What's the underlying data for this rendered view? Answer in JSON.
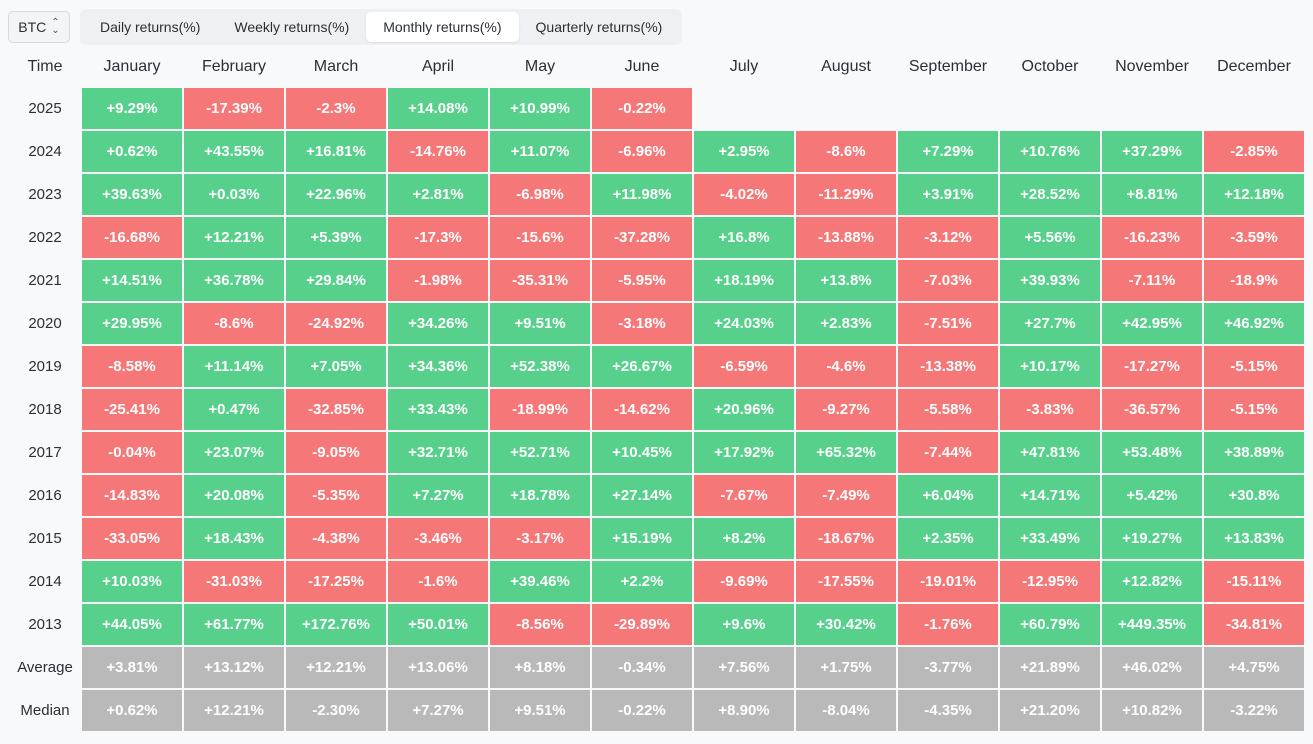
{
  "asset_selector": {
    "value": "BTC"
  },
  "tabs": [
    {
      "label": "Daily returns(%)",
      "active": false
    },
    {
      "label": "Weekly returns(%)",
      "active": false
    },
    {
      "label": "Monthly returns(%)",
      "active": true
    },
    {
      "label": "Quarterly returns(%)",
      "active": false
    }
  ],
  "table": {
    "corner": "Time",
    "months": [
      "January",
      "February",
      "March",
      "April",
      "May",
      "June",
      "July",
      "August",
      "September",
      "October",
      "November",
      "December"
    ],
    "rows": [
      {
        "label": "2025",
        "values": [
          "+9.29%",
          "-17.39%",
          "-2.3%",
          "+14.08%",
          "+10.99%",
          "-0.22%",
          "",
          "",
          "",
          "",
          "",
          ""
        ]
      },
      {
        "label": "2024",
        "values": [
          "+0.62%",
          "+43.55%",
          "+16.81%",
          "-14.76%",
          "+11.07%",
          "-6.96%",
          "+2.95%",
          "-8.6%",
          "+7.29%",
          "+10.76%",
          "+37.29%",
          "-2.85%"
        ]
      },
      {
        "label": "2023",
        "values": [
          "+39.63%",
          "+0.03%",
          "+22.96%",
          "+2.81%",
          "-6.98%",
          "+11.98%",
          "-4.02%",
          "-11.29%",
          "+3.91%",
          "+28.52%",
          "+8.81%",
          "+12.18%"
        ]
      },
      {
        "label": "2022",
        "values": [
          "-16.68%",
          "+12.21%",
          "+5.39%",
          "-17.3%",
          "-15.6%",
          "-37.28%",
          "+16.8%",
          "-13.88%",
          "-3.12%",
          "+5.56%",
          "-16.23%",
          "-3.59%"
        ]
      },
      {
        "label": "2021",
        "values": [
          "+14.51%",
          "+36.78%",
          "+29.84%",
          "-1.98%",
          "-35.31%",
          "-5.95%",
          "+18.19%",
          "+13.8%",
          "-7.03%",
          "+39.93%",
          "-7.11%",
          "-18.9%"
        ]
      },
      {
        "label": "2020",
        "values": [
          "+29.95%",
          "-8.6%",
          "-24.92%",
          "+34.26%",
          "+9.51%",
          "-3.18%",
          "+24.03%",
          "+2.83%",
          "-7.51%",
          "+27.7%",
          "+42.95%",
          "+46.92%"
        ]
      },
      {
        "label": "2019",
        "values": [
          "-8.58%",
          "+11.14%",
          "+7.05%",
          "+34.36%",
          "+52.38%",
          "+26.67%",
          "-6.59%",
          "-4.6%",
          "-13.38%",
          "+10.17%",
          "-17.27%",
          "-5.15%"
        ]
      },
      {
        "label": "2018",
        "values": [
          "-25.41%",
          "+0.47%",
          "-32.85%",
          "+33.43%",
          "-18.99%",
          "-14.62%",
          "+20.96%",
          "-9.27%",
          "-5.58%",
          "-3.83%",
          "-36.57%",
          "-5.15%"
        ]
      },
      {
        "label": "2017",
        "values": [
          "-0.04%",
          "+23.07%",
          "-9.05%",
          "+32.71%",
          "+52.71%",
          "+10.45%",
          "+17.92%",
          "+65.32%",
          "-7.44%",
          "+47.81%",
          "+53.48%",
          "+38.89%"
        ]
      },
      {
        "label": "2016",
        "values": [
          "-14.83%",
          "+20.08%",
          "-5.35%",
          "+7.27%",
          "+18.78%",
          "+27.14%",
          "-7.67%",
          "-7.49%",
          "+6.04%",
          "+14.71%",
          "+5.42%",
          "+30.8%"
        ]
      },
      {
        "label": "2015",
        "values": [
          "-33.05%",
          "+18.43%",
          "-4.38%",
          "-3.46%",
          "-3.17%",
          "+15.19%",
          "+8.2%",
          "-18.67%",
          "+2.35%",
          "+33.49%",
          "+19.27%",
          "+13.83%"
        ]
      },
      {
        "label": "2014",
        "values": [
          "+10.03%",
          "-31.03%",
          "-17.25%",
          "-1.6%",
          "+39.46%",
          "+2.2%",
          "-9.69%",
          "-17.55%",
          "-19.01%",
          "-12.95%",
          "+12.82%",
          "-15.11%"
        ]
      },
      {
        "label": "2013",
        "values": [
          "+44.05%",
          "+61.77%",
          "+172.76%",
          "+50.01%",
          "-8.56%",
          "-29.89%",
          "+9.6%",
          "+30.42%",
          "-1.76%",
          "+60.79%",
          "+449.35%",
          "-34.81%"
        ]
      }
    ],
    "summary": [
      {
        "label": "Average",
        "values": [
          "+3.81%",
          "+13.12%",
          "+12.21%",
          "+13.06%",
          "+8.18%",
          "-0.34%",
          "+7.56%",
          "+1.75%",
          "-3.77%",
          "+21.89%",
          "+46.02%",
          "+4.75%"
        ]
      },
      {
        "label": "Median",
        "values": [
          "+0.62%",
          "+12.21%",
          "-2.30%",
          "+7.27%",
          "+9.51%",
          "-0.22%",
          "+8.90%",
          "-8.04%",
          "-4.35%",
          "+21.20%",
          "+10.82%",
          "-3.22%"
        ]
      }
    ]
  },
  "colors": {
    "positive": "#57d08b",
    "negative": "#f57778",
    "summary": "#b9b9b9"
  }
}
